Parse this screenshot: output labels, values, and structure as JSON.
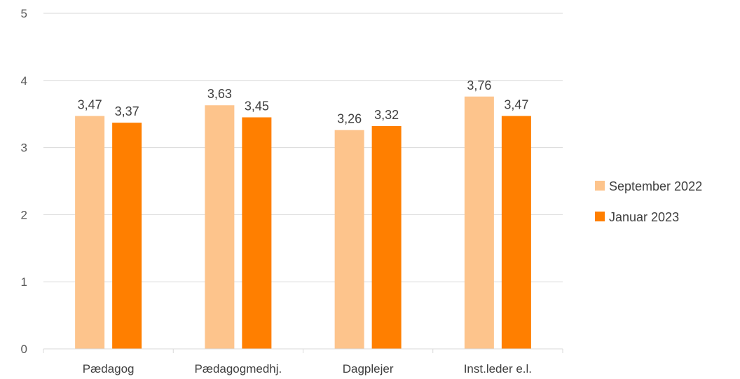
{
  "chart_data": {
    "type": "bar",
    "categories": [
      "Pædagog",
      "Pædagogmedhj.",
      "Dagplejer",
      "Inst.leder e.l."
    ],
    "series": [
      {
        "name": "September 2022",
        "values": [
          3.47,
          3.63,
          3.26,
          3.76
        ],
        "labels": [
          "3,47",
          "3,63",
          "3,26",
          "3,76"
        ],
        "color": "#FDC48C"
      },
      {
        "name": "Januar 2023",
        "values": [
          3.37,
          3.45,
          3.32,
          3.47
        ],
        "labels": [
          "3,37",
          "3,45",
          "3,32",
          "3,47"
        ],
        "color": "#FF7F00"
      }
    ],
    "yticks": [
      "0",
      "1",
      "2",
      "3",
      "4",
      "5"
    ],
    "ylim": [
      0,
      5
    ],
    "grid": true,
    "legend_position": "right",
    "gridline_color": "#D9D9D9"
  }
}
